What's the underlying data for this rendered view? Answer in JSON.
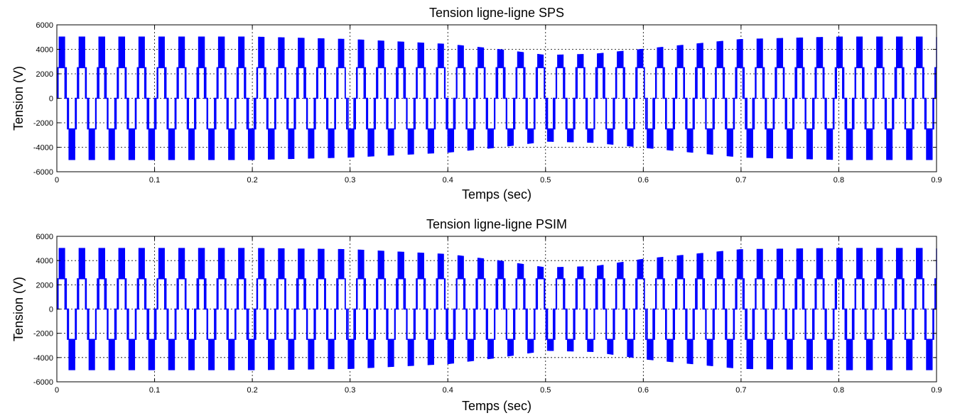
{
  "chart_data": [
    {
      "type": "line",
      "title": "Tension ligne-ligne SPS",
      "xlabel": "Temps (sec)",
      "ylabel": "Tension (V)",
      "xlim": [
        0,
        0.9
      ],
      "ylim": [
        -6000,
        6000
      ],
      "xticks": [
        "0",
        "0.1",
        "0.2",
        "0.3",
        "0.4",
        "0.5",
        "0.6",
        "0.7",
        "0.8",
        "0.9"
      ],
      "yticks": [
        "-6000",
        "-4000",
        "-2000",
        "0",
        "2000",
        "4000",
        "6000"
      ],
      "grid": true,
      "signal": {
        "kind": "multilevel PWM line-to-line voltage",
        "levels_V": [
          -5000,
          -2500,
          0,
          2500,
          5000
        ],
        "fundamental_period_s": 0.0204,
        "peak_envelope": {
          "t": [
            0,
            0.1,
            0.2,
            0.3,
            0.4,
            0.45,
            0.5,
            0.55,
            0.6,
            0.65,
            0.7,
            0.8,
            0.9
          ],
          "peak_V": [
            5000,
            5000,
            5000,
            4800,
            4400,
            4000,
            3500,
            3600,
            4000,
            4400,
            4800,
            5000,
            5000
          ]
        },
        "color": "#0000ff"
      }
    },
    {
      "type": "line",
      "title": "Tension ligne-ligne PSIM",
      "xlabel": "Temps (sec)",
      "ylabel": "Tension (V)",
      "xlim": [
        0,
        0.9
      ],
      "ylim": [
        -6000,
        6000
      ],
      "xticks": [
        "0",
        "0.1",
        "0.2",
        "0.3",
        "0.4",
        "0.5",
        "0.6",
        "0.7",
        "0.8",
        "0.9"
      ],
      "yticks": [
        "-6000",
        "-4000",
        "-2000",
        "0",
        "2000",
        "4000",
        "6000"
      ],
      "grid": true,
      "signal": {
        "kind": "multilevel PWM line-to-line voltage",
        "levels_V": [
          -5000,
          -2500,
          0,
          2500,
          5000
        ],
        "fundamental_period_s": 0.0204,
        "peak_envelope": {
          "t": [
            0,
            0.1,
            0.2,
            0.3,
            0.4,
            0.45,
            0.5,
            0.55,
            0.6,
            0.65,
            0.7,
            0.8,
            0.9
          ],
          "peak_V": [
            5000,
            5000,
            5000,
            4900,
            4500,
            4000,
            3400,
            3500,
            4100,
            4500,
            4900,
            5000,
            5000
          ]
        },
        "color": "#0000ff"
      }
    }
  ]
}
